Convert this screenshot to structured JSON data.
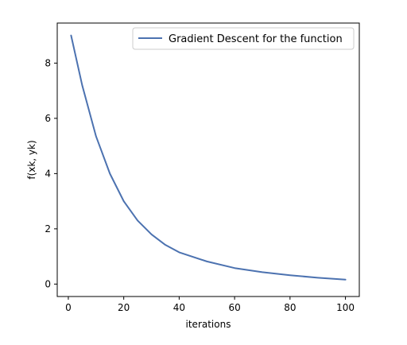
{
  "chart_data": {
    "type": "line",
    "title": "",
    "xlabel": "iterations",
    "ylabel": "f(xk, yk)",
    "xlim": [
      -4.0,
      105.0
    ],
    "ylim": [
      -0.45,
      9.45
    ],
    "xticks": [
      0,
      20,
      40,
      60,
      80,
      100
    ],
    "yticks": [
      0,
      2,
      4,
      6,
      8
    ],
    "grid": false,
    "legend_position": "top-right",
    "series": [
      {
        "name": "Gradient Descent for the function",
        "color": "#4c72b0",
        "x": [
          1,
          5,
          10,
          15,
          20,
          25,
          30,
          35,
          40,
          50,
          60,
          70,
          80,
          90,
          100
        ],
        "y": [
          9.0,
          7.2,
          5.35,
          4.0,
          3.0,
          2.3,
          1.8,
          1.42,
          1.15,
          0.82,
          0.58,
          0.43,
          0.32,
          0.23,
          0.16
        ]
      }
    ]
  }
}
